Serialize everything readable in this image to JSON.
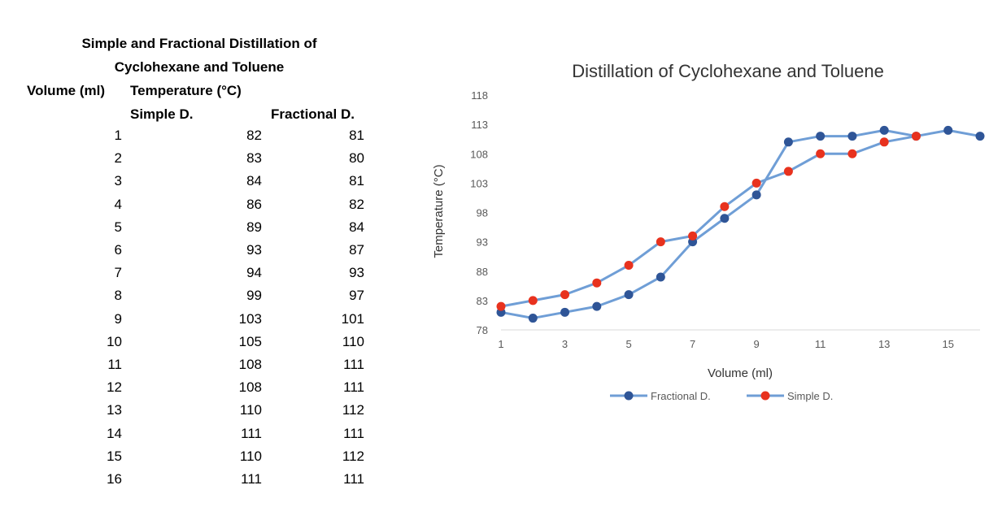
{
  "table": {
    "title_line1": "Simple and Fractional Distillation of",
    "title_line2": "Cyclohexane and Toluene",
    "col_volume": "Volume (ml)",
    "col_temperature": "Temperature (°C)",
    "sub_simple": "Simple D.",
    "sub_fractional": "Fractional D.",
    "rows": [
      {
        "volume": "1",
        "simple": "82",
        "fractional": "81"
      },
      {
        "volume": "2",
        "simple": "83",
        "fractional": "80"
      },
      {
        "volume": "3",
        "simple": "84",
        "fractional": "81"
      },
      {
        "volume": "4",
        "simple": "86",
        "fractional": "82"
      },
      {
        "volume": "5",
        "simple": "89",
        "fractional": "84"
      },
      {
        "volume": "6",
        "simple": "93",
        "fractional": "87"
      },
      {
        "volume": "7",
        "simple": "94",
        "fractional": "93"
      },
      {
        "volume": "8",
        "simple": "99",
        "fractional": "97"
      },
      {
        "volume": "9",
        "simple": "103",
        "fractional": "101"
      },
      {
        "volume": "10",
        "simple": "105",
        "fractional": "110"
      },
      {
        "volume": "11",
        "simple": "108",
        "fractional": "111"
      },
      {
        "volume": "12",
        "simple": "108",
        "fractional": "111"
      },
      {
        "volume": "13",
        "simple": "110",
        "fractional": "112"
      },
      {
        "volume": "14",
        "simple": "111",
        "fractional": "111"
      },
      {
        "volume": "15",
        "simple": "110",
        "fractional": "112"
      },
      {
        "volume": "16",
        "simple": "111",
        "fractional": "111"
      }
    ]
  },
  "chart_data": {
    "type": "line",
    "title": "Distillation of Cyclohexane and Toluene",
    "xlabel": "Volume (ml)",
    "ylabel": "Temperature (°C)",
    "x": [
      1,
      2,
      3,
      4,
      5,
      6,
      7,
      8,
      9,
      10,
      11,
      12,
      13,
      14,
      15,
      16
    ],
    "xlim": [
      1,
      16
    ],
    "xticks": [
      1,
      3,
      5,
      7,
      9,
      11,
      13,
      15
    ],
    "ylim": [
      78,
      118
    ],
    "yticks": [
      78,
      83,
      88,
      93,
      98,
      103,
      108,
      113,
      118
    ],
    "grid": false,
    "legend_position": "bottom",
    "series": [
      {
        "name": "Fractional D.",
        "line_color": "#6f9ed6",
        "marker_color": "#2f5597",
        "values": [
          81,
          80,
          81,
          82,
          84,
          87,
          93,
          97,
          101,
          110,
          111,
          111,
          112,
          111,
          112,
          111
        ]
      },
      {
        "name": "Simple D.",
        "line_color": "#6f9ed6",
        "marker_color": "#e8321e",
        "values": [
          82,
          83,
          84,
          86,
          89,
          93,
          94,
          99,
          103,
          105,
          108,
          108,
          110,
          111,
          null,
          null
        ]
      }
    ]
  }
}
